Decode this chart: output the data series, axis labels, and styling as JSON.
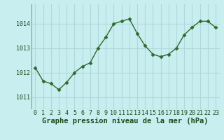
{
  "x": [
    0,
    1,
    2,
    3,
    4,
    5,
    6,
    7,
    8,
    9,
    10,
    11,
    12,
    13,
    14,
    15,
    16,
    17,
    18,
    19,
    20,
    21,
    22,
    23
  ],
  "y": [
    1012.2,
    1011.65,
    1011.55,
    1011.3,
    1011.6,
    1012.0,
    1012.25,
    1012.4,
    1013.0,
    1013.45,
    1014.0,
    1014.1,
    1014.2,
    1013.6,
    1013.1,
    1012.75,
    1012.65,
    1012.75,
    1013.0,
    1013.55,
    1013.85,
    1014.1,
    1014.1,
    1013.85
  ],
  "line_color": "#2d6a2d",
  "marker": "D",
  "marker_size": 2.5,
  "bg_color": "#c8eef0",
  "grid_color": "#b0d8da",
  "spine_color": "#5a8a5a",
  "xlabel": "Graphe pression niveau de la mer (hPa)",
  "xlabel_color": "#1a4a1a",
  "xlabel_fontsize": 7.5,
  "tick_color": "#1a4a1a",
  "tick_fontsize": 6,
  "ylim": [
    1010.5,
    1014.8
  ],
  "yticks": [
    1011,
    1012,
    1013,
    1014
  ],
  "xlim": [
    -0.5,
    23.5
  ],
  "xticks": [
    0,
    1,
    2,
    3,
    4,
    5,
    6,
    7,
    8,
    9,
    10,
    11,
    12,
    13,
    14,
    15,
    16,
    17,
    18,
    19,
    20,
    21,
    22,
    23
  ]
}
